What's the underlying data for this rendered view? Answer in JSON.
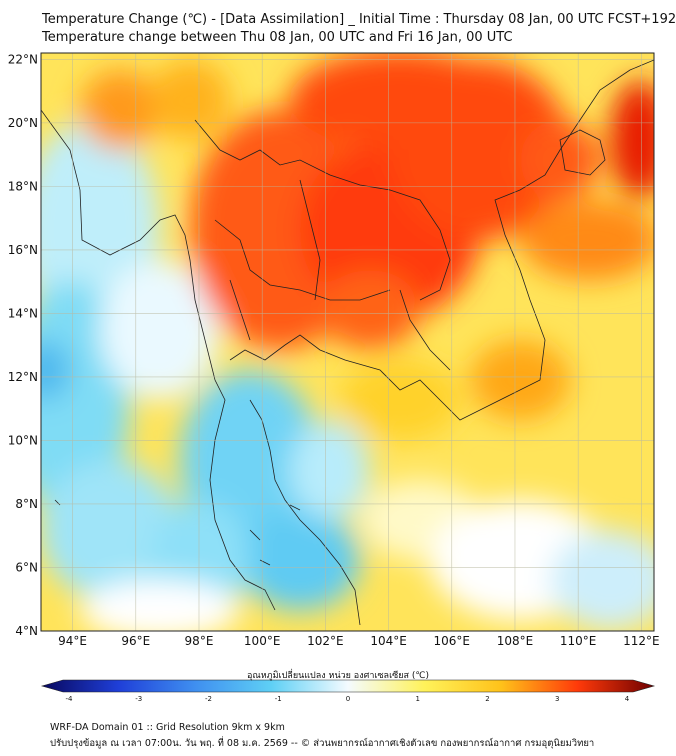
{
  "header": {
    "title": "Temperature Change (℃) - [Data Assimilation] _ Initial Time : Thursday 08 Jan, 00 UTC FCST+192",
    "subtitle": "Temperature change between Thu 08 Jan, 00 UTC and Fri 16 Jan, 00 UTC"
  },
  "map": {
    "lat_labels": [
      "22°N",
      "20°N",
      "18°N",
      "16°N",
      "14°N",
      "12°N",
      "10°N",
      "8°N",
      "6°N",
      "4°N"
    ],
    "lon_labels": [
      "94°E",
      "96°E",
      "98°E",
      "100°E",
      "102°E",
      "104°E",
      "106°E",
      "108°E",
      "110°E",
      "112°E"
    ],
    "lat_range": [
      4,
      22.2
    ],
    "lon_range": [
      93,
      112.4
    ],
    "grid": true
  },
  "colorbar": {
    "title": "อุณหภูมิเปลี่ยนแปลง หน่วย องศาเซลเซียส (℃)",
    "ticks": [
      "-4",
      "-3",
      "-2",
      "-1",
      "0",
      "1",
      "2",
      "3",
      "4"
    ],
    "colors": {
      "neg4": "#08085e",
      "neg3": "#1f3fd8",
      "neg2": "#3f8ff0",
      "neg1": "#5fd0f5",
      "zero": "#f4fbff",
      "pos1": "#fff25a",
      "pos2": "#ffc21a",
      "pos3": "#ff3a0a",
      "pos4": "#6e0000"
    }
  },
  "footer": {
    "line1": "WRF-DA Domain 01 :: Grid Resolution 9km x 9km",
    "line2": "ปรับปรุงข้อมูล ณ เวลา 07:00น. วัน พฤ. ที่ 08 ม.ค. 2569 -- © ส่วนพยากรณ์อากาศเชิงตัวเลข กองพยากรณ์อากาศ กรมอุตุนิยมวิทยา"
  }
}
